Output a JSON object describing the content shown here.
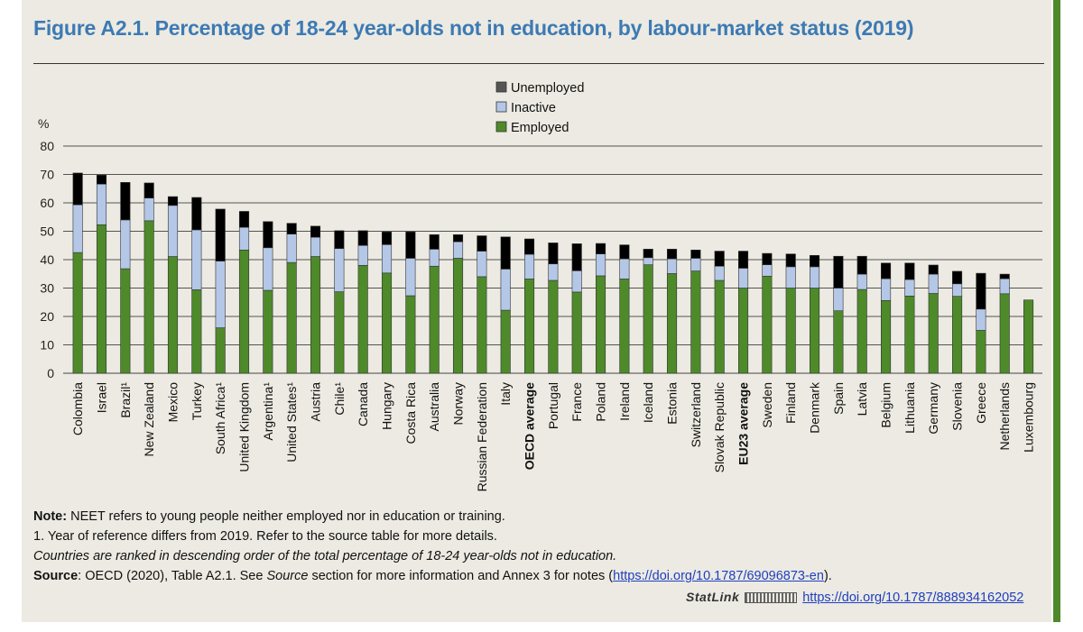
{
  "title": "Figure A2.1. Percentage of 18-24 year-olds not in education, by labour-market status (2019)",
  "chart_data": {
    "type": "bar",
    "stacked": true,
    "ylabel": "%",
    "ylim": [
      0,
      80
    ],
    "yticks": [
      0,
      10,
      20,
      30,
      40,
      50,
      60,
      70,
      80
    ],
    "grid": true,
    "legend": "top-center",
    "categories": [
      "Colombia",
      "Israel",
      "Brazil¹",
      "New Zealand",
      "Mexico",
      "Turkey",
      "South Africa¹",
      "United Kingdom",
      "Argentina¹",
      "United States¹",
      "Austria",
      "Chile¹",
      "Canada",
      "Hungary",
      "Costa Rica",
      "Australia",
      "Norway",
      "Russian Federation",
      "Italy",
      "OECD average",
      "Portugal",
      "France",
      "Poland",
      "Ireland",
      "Iceland",
      "Estonia",
      "Switzerland",
      "Slovak Republic",
      "EU23 average",
      "Sweden",
      "Finland",
      "Denmark",
      "Spain",
      "Latvia",
      "Belgium",
      "Lithuania",
      "Germany",
      "Slovenia",
      "Greece",
      "Netherlands",
      "Luxembourg"
    ],
    "bold_categories": [
      "OECD average",
      "EU23 average"
    ],
    "series": [
      {
        "name": "Employed",
        "color": "#4e8a2a",
        "values": [
          42.5,
          52.3,
          36.8,
          53.7,
          41.1,
          29.4,
          16.0,
          43.4,
          29.2,
          39.0,
          41.1,
          28.7,
          38.0,
          35.3,
          27.3,
          37.7,
          40.5,
          34.0,
          22.2,
          33.2,
          32.7,
          28.6,
          34.3,
          33.2,
          38.2,
          35.1,
          36.0,
          32.7,
          30.0,
          34.2,
          30.0,
          30.0,
          22.0,
          29.5,
          25.6,
          27.2,
          28.1,
          27.1,
          15.1,
          28.0,
          25.8
        ]
      },
      {
        "name": "Inactive",
        "color": "#b4c7e7",
        "values": [
          16.8,
          14.3,
          17.2,
          8.0,
          18.0,
          21.1,
          23.5,
          8.0,
          15.0,
          10.0,
          6.8,
          15.2,
          7.0,
          10.0,
          13.2,
          6.0,
          5.8,
          9.0,
          14.5,
          8.7,
          5.8,
          7.5,
          7.7,
          7.1,
          2.5,
          5.2,
          4.5,
          5.0,
          7.0,
          4.0,
          7.5,
          7.5,
          8.0,
          5.4,
          7.7,
          5.8,
          6.8,
          4.4,
          7.5,
          5.3,
          0
        ]
      },
      {
        "name": "Unemployed",
        "color": "#000000",
        "values": [
          11.2,
          3.2,
          13.2,
          5.3,
          3.1,
          11.4,
          18.3,
          5.6,
          9.2,
          3.8,
          3.9,
          6.3,
          5.2,
          4.5,
          9.3,
          5.1,
          2.5,
          5.4,
          11.3,
          5.4,
          7.4,
          9.5,
          3.7,
          4.9,
          3.0,
          3.4,
          2.9,
          5.3,
          6.0,
          4.0,
          4.5,
          4.0,
          11.2,
          6.3,
          5.5,
          5.8,
          3.2,
          4.4,
          12.6,
          1.6,
          0
        ]
      }
    ]
  },
  "notes": {
    "note_label": "Note:",
    "note_text": " NEET refers to young people neither employed nor in education or training.",
    "footnote1": "1. Year of reference differs from 2019. Refer to the source table for more details.",
    "ranking": "Countries are ranked in descending order of the total percentage of 18-24 year-olds not in education.",
    "source_label": "Source",
    "source_text_a": ": OECD (2020), Table A2.1. See ",
    "source_italic": "Source",
    "source_text_b": " section for more information and Annex 3 for notes (",
    "source_link": "https://doi.org/10.1787/69096873-en",
    "source_text_c": ").",
    "statlink_label": "StatLink",
    "statlink_url": "https://doi.org/10.1787/888934162052"
  }
}
